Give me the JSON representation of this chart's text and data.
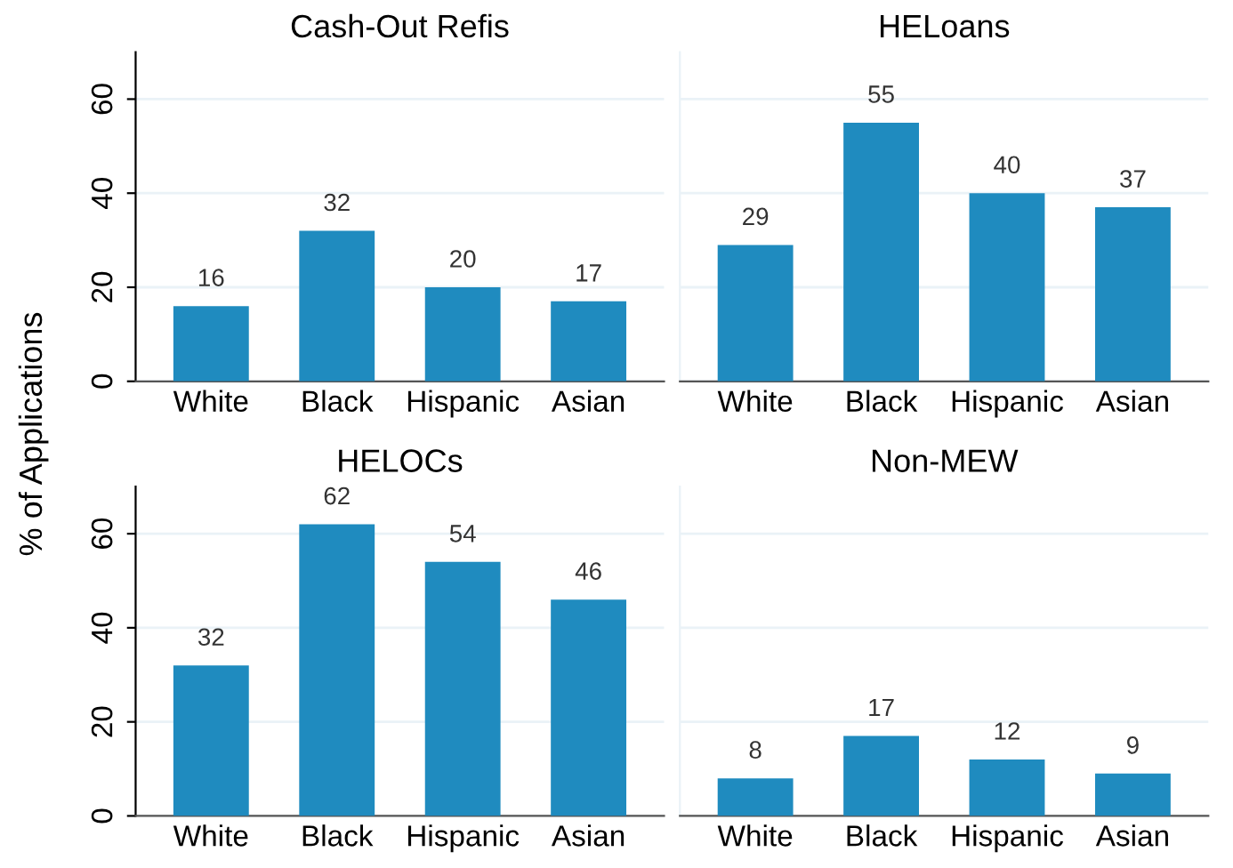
{
  "chart_data": [
    {
      "type": "bar",
      "title": "Cash-Out Refis",
      "ylabel": "% of Applications",
      "categories": [
        "White",
        "Black",
        "Hispanic",
        "Asian"
      ],
      "values": [
        16,
        32,
        20,
        17
      ],
      "color": "#1f8bbf",
      "ylim": [
        0,
        70
      ],
      "yticks": [
        0,
        20,
        40,
        60
      ],
      "grid": "y",
      "data_labels": true
    },
    {
      "type": "bar",
      "title": "HELoans",
      "categories": [
        "White",
        "Black",
        "Hispanic",
        "Asian"
      ],
      "values": [
        29,
        55,
        40,
        37
      ],
      "color": "#1f8bbf",
      "ylim": [
        0,
        70
      ],
      "yticks": [
        0,
        20,
        40,
        60
      ],
      "grid": "y",
      "data_labels": true,
      "tick_labels": "x"
    },
    {
      "type": "bar",
      "title": "HELOCs",
      "categories": [
        "White",
        "Black",
        "Hispanic",
        "Asian"
      ],
      "values": [
        32,
        62,
        54,
        46
      ],
      "color": "#1f8bbf",
      "ylim": [
        0,
        70
      ],
      "yticks": [
        0,
        20,
        40,
        60
      ],
      "grid": "y",
      "data_labels": true
    },
    {
      "type": "bar",
      "title": "Non-MEW",
      "categories": [
        "White",
        "Black",
        "Hispanic",
        "Asian"
      ],
      "values": [
        8,
        17,
        12,
        9
      ],
      "color": "#1f8bbf",
      "ylim": [
        0,
        70
      ],
      "yticks": [
        0,
        20,
        40,
        60
      ],
      "grid": "y",
      "data_labels": true,
      "tick_labels": "x"
    }
  ]
}
